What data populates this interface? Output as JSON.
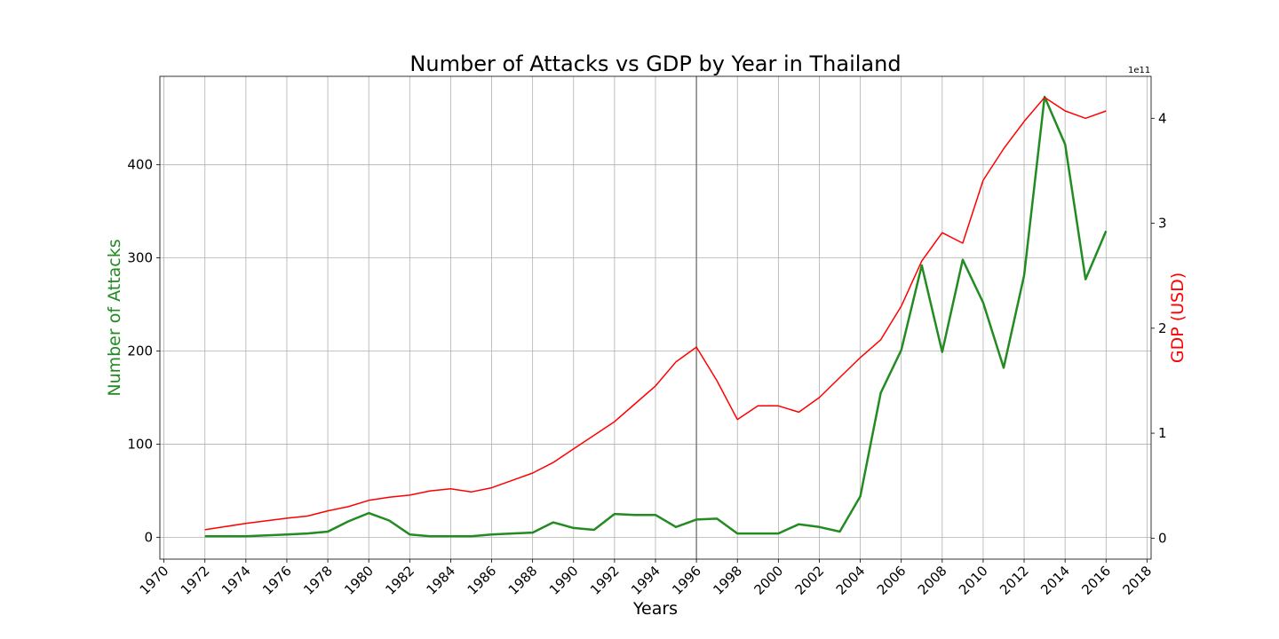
{
  "chart_data": {
    "type": "line",
    "title": "Number of Attacks vs GDP by Year in Thailand",
    "xlabel": "Years",
    "ylabel_left": "Number of Attacks",
    "ylabel_right": "GDP (USD)",
    "right_axis_offset_label": "1e11",
    "xlim": [
      1969.8,
      2018.2
    ],
    "ylim_left": [
      -23.5,
      495
    ],
    "ylim_right": [
      -0.2,
      4.4
    ],
    "x_ticks": [
      1970,
      1972,
      1974,
      1976,
      1978,
      1980,
      1982,
      1984,
      1986,
      1988,
      1990,
      1992,
      1994,
      1996,
      1998,
      2000,
      2002,
      2004,
      2006,
      2008,
      2010,
      2012,
      2014,
      2016,
      2018
    ],
    "y_ticks_left": [
      0,
      100,
      200,
      300,
      400
    ],
    "y_ticks_right": [
      0,
      1,
      2,
      3,
      4
    ],
    "grid": true,
    "vline_x": 1996,
    "colors": {
      "attacks": "#228b22",
      "gdp": "#ff0000",
      "vline": "#808080"
    },
    "series": [
      {
        "name": "Number of Attacks",
        "axis": "left",
        "x": [
          1972,
          1973,
          1974,
          1975,
          1976,
          1977,
          1978,
          1979,
          1980,
          1981,
          1982,
          1983,
          1984,
          1985,
          1986,
          1987,
          1988,
          1989,
          1990,
          1991,
          1992,
          1993,
          1994,
          1995,
          1996,
          1997,
          1998,
          1999,
          2000,
          2001,
          2002,
          2003,
          2004,
          2005,
          2006,
          2007,
          2008,
          2009,
          2010,
          2011,
          2012,
          2013,
          2014,
          2015,
          2016
        ],
        "values": [
          1,
          1,
          1,
          2,
          3,
          4,
          6,
          17,
          26,
          18,
          3,
          1,
          1,
          1,
          3,
          4,
          5,
          16,
          10,
          8,
          25,
          24,
          24,
          11,
          19,
          20,
          4,
          4,
          4,
          14,
          11,
          6,
          44,
          155,
          201,
          292,
          199,
          298,
          252,
          182,
          281,
          473,
          422,
          277,
          329
        ]
      },
      {
        "name": "GDP (USD)",
        "axis": "right",
        "x": [
          1972,
          1974,
          1976,
          1977,
          1978,
          1979,
          1980,
          1981,
          1982,
          1983,
          1984,
          1985,
          1986,
          1987,
          1988,
          1989,
          1990,
          1991,
          1992,
          1993,
          1994,
          1995,
          1996,
          1997,
          1998,
          1999,
          2000,
          2001,
          2002,
          2003,
          2004,
          2005,
          2006,
          2007,
          2008,
          2009,
          2010,
          2011,
          2012,
          2013,
          2014,
          2015,
          2016
        ],
        "values": [
          0.08,
          0.14,
          0.19,
          0.21,
          0.26,
          0.3,
          0.36,
          0.39,
          0.41,
          0.45,
          0.47,
          0.44,
          0.48,
          0.55,
          0.62,
          0.72,
          0.85,
          0.98,
          1.11,
          1.28,
          1.45,
          1.68,
          1.82,
          1.5,
          1.13,
          1.26,
          1.26,
          1.2,
          1.34,
          1.53,
          1.72,
          1.89,
          2.21,
          2.64,
          2.91,
          2.81,
          3.41,
          3.71,
          3.97,
          4.2,
          4.07,
          4.0,
          4.07
        ]
      }
    ]
  }
}
